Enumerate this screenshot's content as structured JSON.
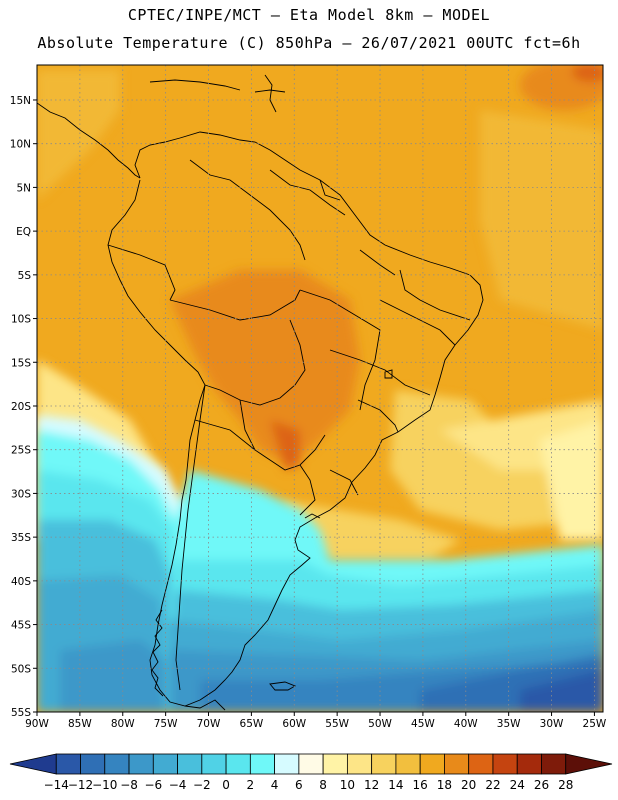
{
  "header": {
    "line1": "CPTEC/INPE/MCT —  Eta Model 8km — MODEL",
    "line2": "Absolute Temperature (C) 850hPa — 26/07/2021 00UTC fct=6h"
  },
  "map": {
    "lat_labels": [
      "15N",
      "10N",
      "5N",
      "EQ",
      "5S",
      "10S",
      "15S",
      "20S",
      "25S",
      "30S",
      "35S",
      "40S",
      "45S",
      "50S",
      "55S"
    ],
    "lon_labels": [
      "90W",
      "85W",
      "80W",
      "75W",
      "70W",
      "65W",
      "60W",
      "55W",
      "50W",
      "45W",
      "40W",
      "35W",
      "30W",
      "25W"
    ],
    "grid": "dotted",
    "bounds": {
      "lon_min": -90,
      "lon_max": -24,
      "lat_min": -55,
      "lat_max": 19
    }
  },
  "colorbar": {
    "labels": [
      "-14",
      "-12",
      "-10",
      "-8",
      "-6",
      "-4",
      "-2",
      "0",
      "2",
      "4",
      "6",
      "8",
      "10",
      "12",
      "14",
      "16",
      "18",
      "20",
      "22",
      "24",
      "26",
      "28"
    ],
    "colors": [
      "#1f3b8f",
      "#2a58a8",
      "#2f6fb5",
      "#3584c0",
      "#3c98c9",
      "#42abd2",
      "#49bfdc",
      "#50d2e6",
      "#5ae6ee",
      "#6ff8f8",
      "#d6fbff",
      "#fffbe6",
      "#fff3a6",
      "#fde587",
      "#f7d25e",
      "#f2bf3e",
      "#f0a91f",
      "#e88a1a",
      "#dd6414",
      "#c54410",
      "#a42a0c",
      "#7e1b0a",
      "#5c0f08"
    ]
  }
}
